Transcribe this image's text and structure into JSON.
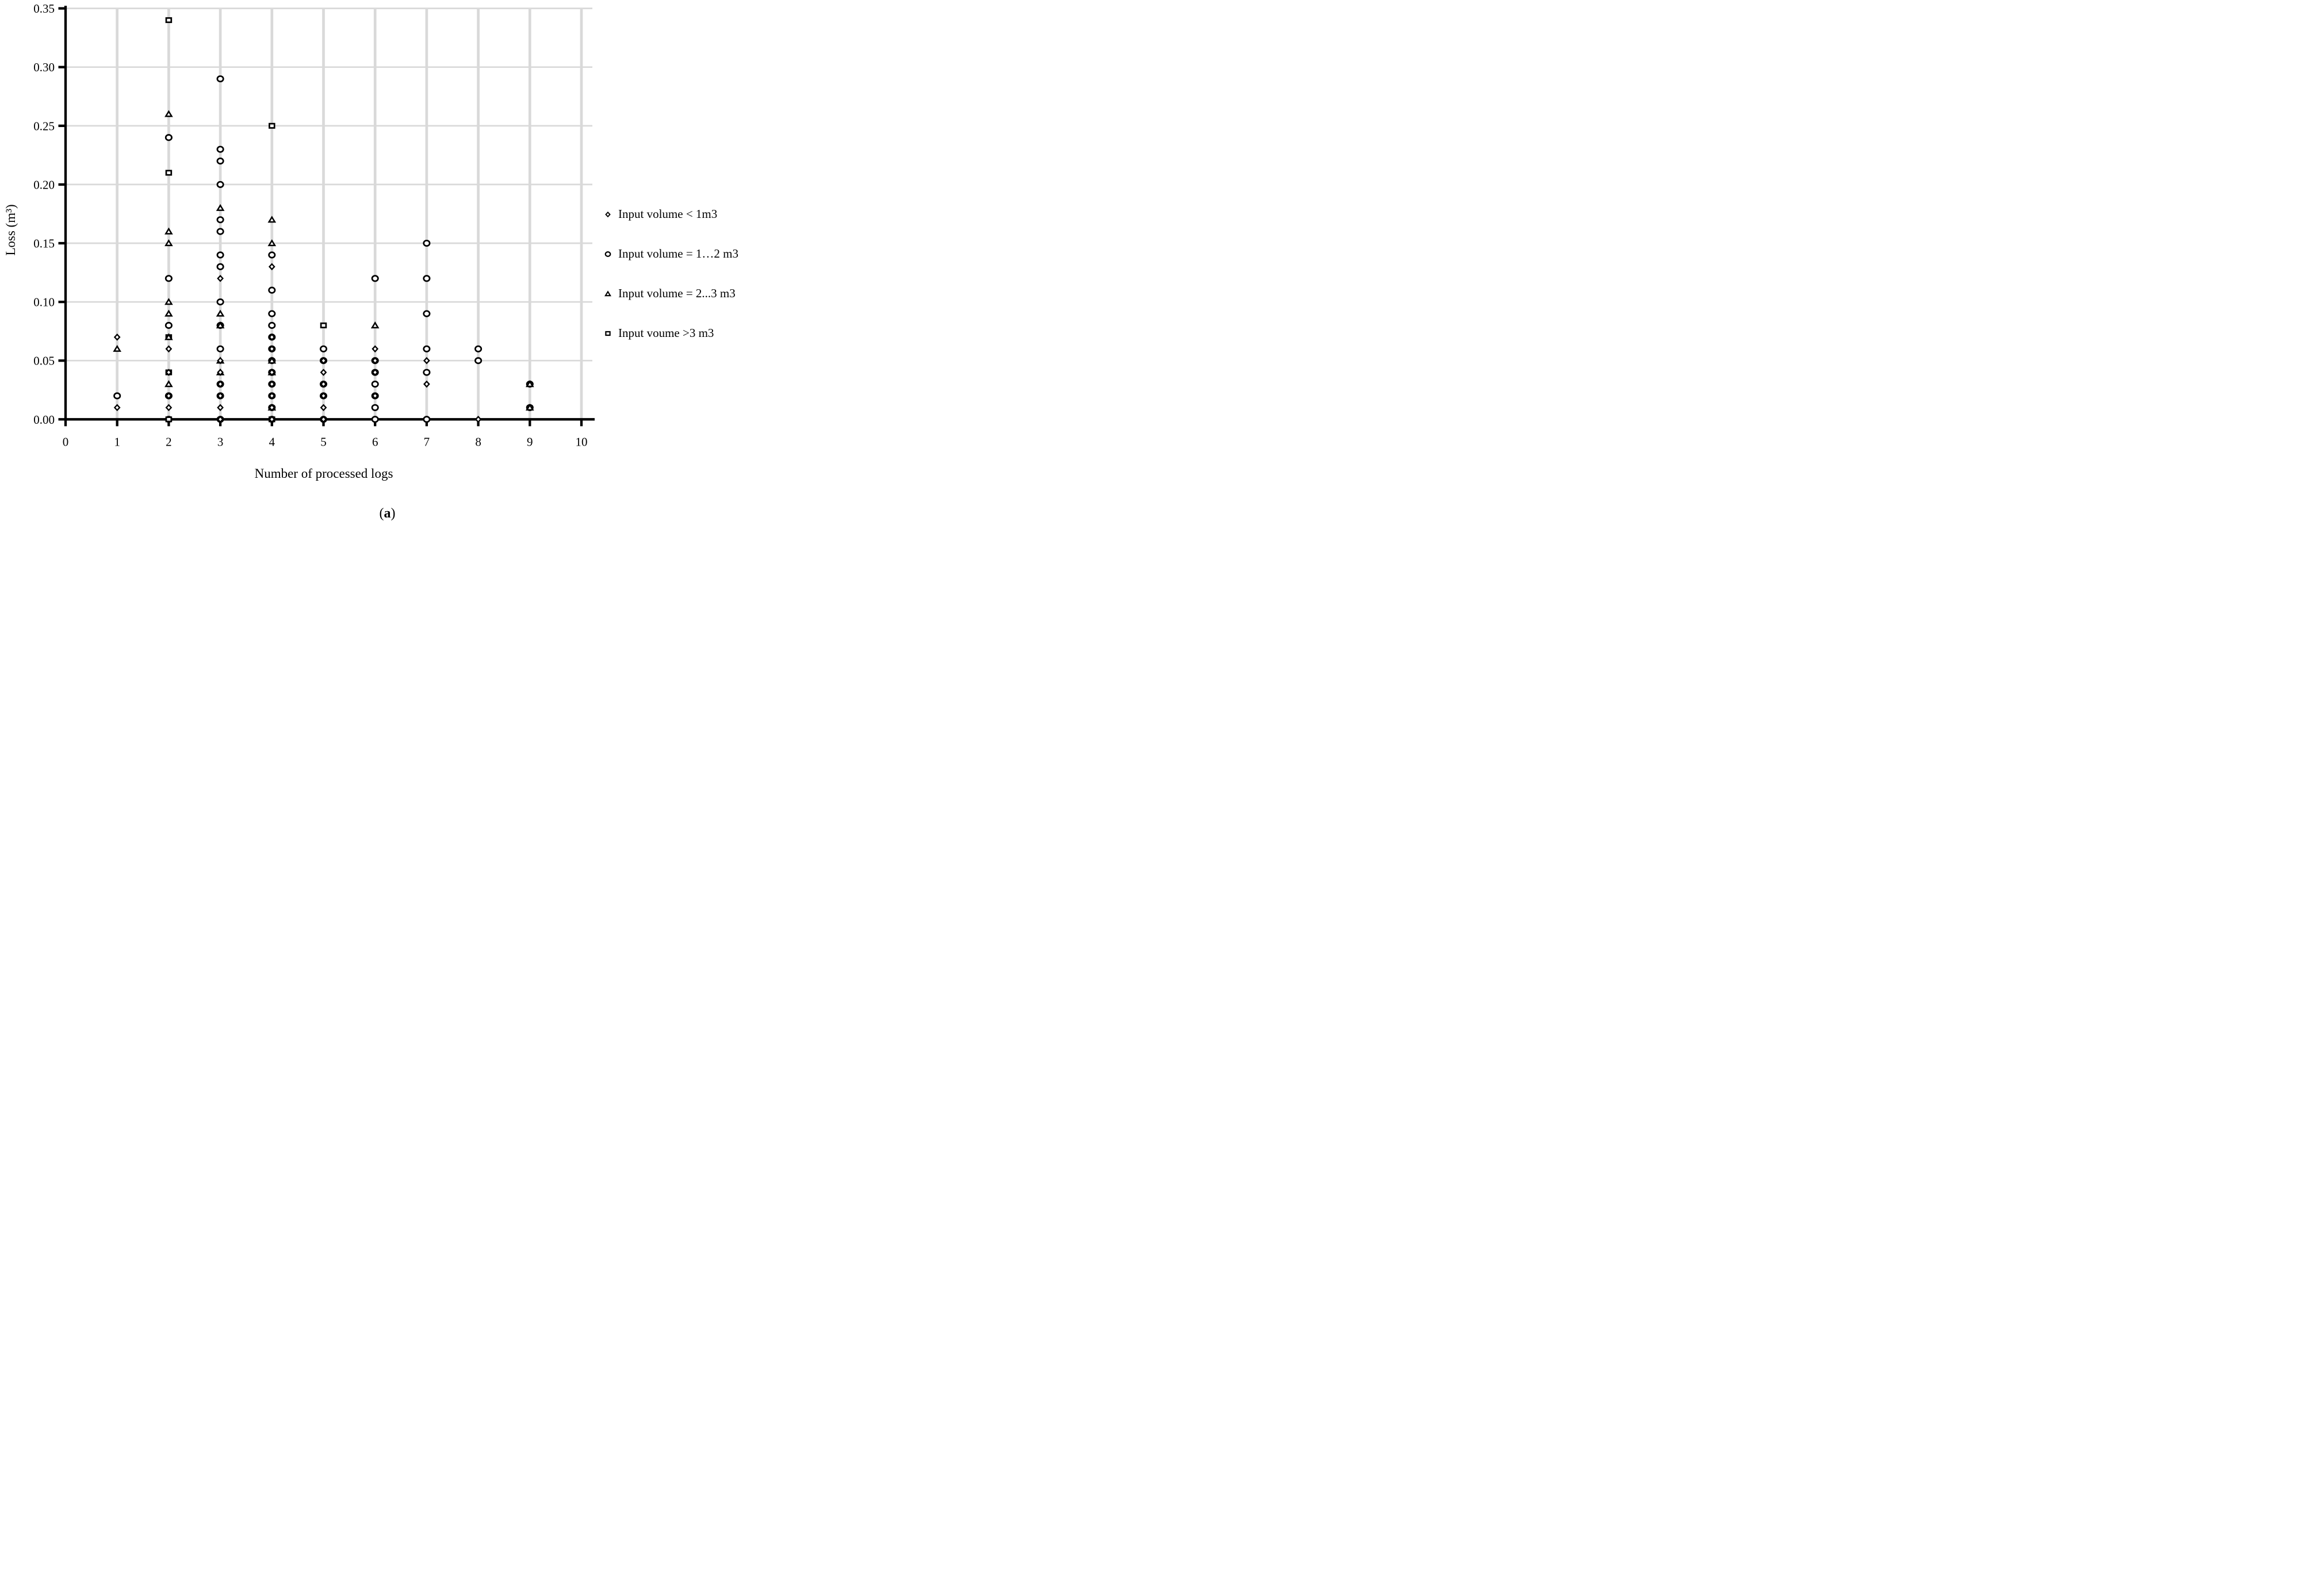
{
  "figure": {
    "caption_open": "(",
    "caption_letter": "a",
    "caption_close": ")"
  },
  "chart_data": {
    "type": "scatter",
    "title": "",
    "xlabel": "Number of processed logs",
    "ylabel": "Loss (m³)",
    "xlim": [
      0,
      10
    ],
    "ylim": [
      0.0,
      0.35
    ],
    "xticks": [
      "0",
      "1",
      "2",
      "3",
      "4",
      "5",
      "6",
      "7",
      "8",
      "9",
      "10"
    ],
    "yticks": [
      "0.00",
      "0.05",
      "0.10",
      "0.15",
      "0.20",
      "0.25",
      "0.30",
      "0.35"
    ],
    "grid": true,
    "gridline_color": "#d9d9d9",
    "marker_color": "#000000",
    "legend_position": "right",
    "series": [
      {
        "name": "Input volume < 1m3",
        "marker": "diamond",
        "points": [
          [
            1,
            0.07
          ],
          [
            1,
            0.01
          ],
          [
            2,
            0.06
          ],
          [
            2,
            0.04
          ],
          [
            2,
            0.02
          ],
          [
            2,
            0.01
          ],
          [
            3,
            0.12
          ],
          [
            3,
            0.05
          ],
          [
            3,
            0.04
          ],
          [
            3,
            0.03
          ],
          [
            3,
            0.02
          ],
          [
            3,
            0.01
          ],
          [
            3,
            0.0
          ],
          [
            4,
            0.13
          ],
          [
            4,
            0.07
          ],
          [
            4,
            0.06
          ],
          [
            4,
            0.04
          ],
          [
            4,
            0.03
          ],
          [
            4,
            0.02
          ],
          [
            4,
            0.01
          ],
          [
            4,
            0.0
          ],
          [
            5,
            0.05
          ],
          [
            5,
            0.04
          ],
          [
            5,
            0.03
          ],
          [
            5,
            0.02
          ],
          [
            5,
            0.01
          ],
          [
            5,
            0.0
          ],
          [
            6,
            0.06
          ],
          [
            6,
            0.05
          ],
          [
            6,
            0.04
          ],
          [
            6,
            0.02
          ],
          [
            7,
            0.05
          ],
          [
            7,
            0.03
          ],
          [
            8,
            0.0
          ]
        ]
      },
      {
        "name": "Input volume = 1…2 m3",
        "marker": "circle",
        "points": [
          [
            1,
            0.02
          ],
          [
            2,
            0.24
          ],
          [
            2,
            0.12
          ],
          [
            2,
            0.08
          ],
          [
            2,
            0.02
          ],
          [
            2,
            0.0
          ],
          [
            3,
            0.29
          ],
          [
            3,
            0.23
          ],
          [
            3,
            0.22
          ],
          [
            3,
            0.2
          ],
          [
            3,
            0.17
          ],
          [
            3,
            0.16
          ],
          [
            3,
            0.14
          ],
          [
            3,
            0.13
          ],
          [
            3,
            0.1
          ],
          [
            3,
            0.08
          ],
          [
            3,
            0.06
          ],
          [
            3,
            0.03
          ],
          [
            3,
            0.02
          ],
          [
            3,
            0.0
          ],
          [
            4,
            0.14
          ],
          [
            4,
            0.11
          ],
          [
            4,
            0.09
          ],
          [
            4,
            0.08
          ],
          [
            4,
            0.07
          ],
          [
            4,
            0.06
          ],
          [
            4,
            0.05
          ],
          [
            4,
            0.04
          ],
          [
            4,
            0.03
          ],
          [
            4,
            0.02
          ],
          [
            4,
            0.01
          ],
          [
            4,
            0.0
          ],
          [
            5,
            0.06
          ],
          [
            5,
            0.05
          ],
          [
            5,
            0.03
          ],
          [
            5,
            0.02
          ],
          [
            5,
            0.0
          ],
          [
            6,
            0.12
          ],
          [
            6,
            0.05
          ],
          [
            6,
            0.04
          ],
          [
            6,
            0.03
          ],
          [
            6,
            0.02
          ],
          [
            6,
            0.01
          ],
          [
            6,
            0.0
          ],
          [
            7,
            0.15
          ],
          [
            7,
            0.12
          ],
          [
            7,
            0.09
          ],
          [
            7,
            0.06
          ],
          [
            7,
            0.04
          ],
          [
            7,
            0.0
          ],
          [
            8,
            0.06
          ],
          [
            8,
            0.05
          ],
          [
            9,
            0.03
          ],
          [
            9,
            0.01
          ]
        ]
      },
      {
        "name": "Input volume = 2...3 m3",
        "marker": "triangle",
        "points": [
          [
            1,
            0.06
          ],
          [
            2,
            0.26
          ],
          [
            2,
            0.16
          ],
          [
            2,
            0.15
          ],
          [
            2,
            0.1
          ],
          [
            2,
            0.09
          ],
          [
            2,
            0.07
          ],
          [
            2,
            0.03
          ],
          [
            3,
            0.18
          ],
          [
            3,
            0.09
          ],
          [
            3,
            0.08
          ],
          [
            3,
            0.05
          ],
          [
            3,
            0.04
          ],
          [
            4,
            0.17
          ],
          [
            4,
            0.15
          ],
          [
            4,
            0.05
          ],
          [
            4,
            0.04
          ],
          [
            4,
            0.01
          ],
          [
            6,
            0.08
          ],
          [
            9,
            0.03
          ],
          [
            9,
            0.01
          ]
        ]
      },
      {
        "name": "Input voume >3 m3",
        "marker": "square",
        "points": [
          [
            2,
            0.34
          ],
          [
            2,
            0.21
          ],
          [
            2,
            0.07
          ],
          [
            2,
            0.04
          ],
          [
            2,
            0.0
          ],
          [
            4,
            0.25
          ],
          [
            4,
            0.0
          ],
          [
            5,
            0.08
          ]
        ]
      }
    ]
  }
}
